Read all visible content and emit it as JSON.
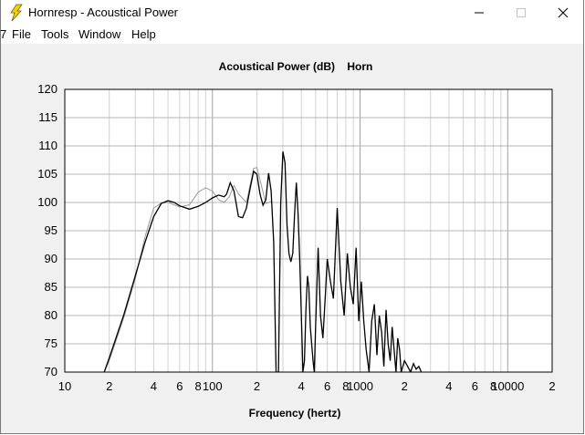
{
  "window": {
    "title": "Hornresp - Acoustical Power",
    "left_edge_glyph": "7"
  },
  "menu": [
    "File",
    "Tools",
    "Window",
    "Help"
  ],
  "chart_data": {
    "type": "line",
    "title": "Acoustical Power (dB)    Horn",
    "xlabel": "Frequency (hertz)",
    "ylabel": "",
    "x_scale": "log",
    "xlim": [
      10,
      20000
    ],
    "ylim": [
      70,
      120
    ],
    "y_ticks": [
      70,
      75,
      80,
      85,
      90,
      95,
      100,
      105,
      110,
      115,
      120
    ],
    "x_tick_labels": [
      {
        "x": 10,
        "label": "10"
      },
      {
        "x": 20,
        "label": "2"
      },
      {
        "x": 40,
        "label": "4"
      },
      {
        "x": 60,
        "label": "6"
      },
      {
        "x": 80,
        "label": "8"
      },
      {
        "x": 100,
        "label": "100"
      },
      {
        "x": 200,
        "label": "2"
      },
      {
        "x": 400,
        "label": "4"
      },
      {
        "x": 600,
        "label": "6"
      },
      {
        "x": 800,
        "label": "8"
      },
      {
        "x": 1000,
        "label": "1000"
      },
      {
        "x": 2000,
        "label": "2"
      },
      {
        "x": 4000,
        "label": "4"
      },
      {
        "x": 6000,
        "label": "6"
      },
      {
        "x": 8000,
        "label": "8"
      },
      {
        "x": 10000,
        "label": "10000"
      },
      {
        "x": 20000,
        "label": "2"
      }
    ],
    "grid": true,
    "series": [
      {
        "color": "#000000",
        "points": [
          [
            18.5,
            70
          ],
          [
            20,
            72.5
          ],
          [
            25,
            80
          ],
          [
            30,
            87
          ],
          [
            35,
            93
          ],
          [
            40,
            97.5
          ],
          [
            45,
            99.8
          ],
          [
            50,
            100.3
          ],
          [
            55,
            100
          ],
          [
            60,
            99.4
          ],
          [
            70,
            98.8
          ],
          [
            80,
            99.3
          ],
          [
            90,
            100
          ],
          [
            100,
            100.8
          ],
          [
            110,
            101.3
          ],
          [
            120,
            101
          ],
          [
            125,
            101.5
          ],
          [
            132,
            103.5
          ],
          [
            140,
            102
          ],
          [
            150,
            97.5
          ],
          [
            160,
            97.3
          ],
          [
            170,
            99
          ],
          [
            180,
            102.5
          ],
          [
            190,
            105.5
          ],
          [
            200,
            105
          ],
          [
            210,
            101.5
          ],
          [
            220,
            99.5
          ],
          [
            230,
            100.5
          ],
          [
            240,
            105.2
          ],
          [
            250,
            102
          ],
          [
            260,
            93
          ],
          [
            270,
            70
          ],
          [
            280,
            70
          ],
          [
            290,
            100
          ],
          [
            300,
            109
          ],
          [
            310,
            107
          ],
          [
            320,
            96
          ],
          [
            330,
            91
          ],
          [
            340,
            89.5
          ],
          [
            350,
            91
          ],
          [
            360,
            98
          ],
          [
            370,
            103.5
          ],
          [
            380,
            98
          ],
          [
            390,
            90
          ],
          [
            400,
            80
          ],
          [
            410,
            70
          ],
          [
            420,
            72
          ],
          [
            430,
            81
          ],
          [
            440,
            87
          ],
          [
            450,
            85
          ],
          [
            460,
            78
          ],
          [
            480,
            72
          ],
          [
            490,
            70
          ],
          [
            500,
            78
          ],
          [
            520,
            92
          ],
          [
            540,
            80
          ],
          [
            560,
            76
          ],
          [
            580,
            83
          ],
          [
            600,
            90
          ],
          [
            630,
            86
          ],
          [
            660,
            83
          ],
          [
            700,
            99
          ],
          [
            740,
            86
          ],
          [
            780,
            80
          ],
          [
            820,
            91
          ],
          [
            860,
            85
          ],
          [
            900,
            82
          ],
          [
            940,
            92
          ],
          [
            980,
            79
          ],
          [
            1020,
            86
          ],
          [
            1060,
            79
          ],
          [
            1100,
            74
          ],
          [
            1150,
            70
          ],
          [
            1200,
            79
          ],
          [
            1250,
            82
          ],
          [
            1300,
            73
          ],
          [
            1350,
            80
          ],
          [
            1400,
            77
          ],
          [
            1450,
            71
          ],
          [
            1500,
            81
          ],
          [
            1550,
            75
          ],
          [
            1600,
            72
          ],
          [
            1650,
            78
          ],
          [
            1700,
            74
          ],
          [
            1750,
            70
          ],
          [
            1800,
            76
          ],
          [
            1850,
            74
          ],
          [
            1900,
            70
          ],
          [
            2000,
            72
          ],
          [
            2100,
            71
          ],
          [
            2200,
            70
          ],
          [
            2300,
            71.5
          ],
          [
            2400,
            70.5
          ],
          [
            2500,
            71
          ],
          [
            2600,
            70
          ]
        ]
      },
      {
        "color": "#9a9a9a",
        "points": [
          [
            18.5,
            70
          ],
          [
            20,
            72
          ],
          [
            25,
            79.5
          ],
          [
            30,
            86.5
          ],
          [
            35,
            94
          ],
          [
            40,
            99
          ],
          [
            45,
            99.9
          ],
          [
            50,
            100
          ],
          [
            60,
            99.2
          ],
          [
            70,
            99.6
          ],
          [
            80,
            101.8
          ],
          [
            90,
            102.6
          ],
          [
            100,
            102
          ],
          [
            110,
            100.5
          ],
          [
            120,
            100
          ],
          [
            130,
            101
          ],
          [
            140,
            103
          ],
          [
            150,
            101.5
          ],
          [
            170,
            100
          ],
          [
            190,
            106
          ],
          [
            200,
            106.2
          ],
          [
            210,
            104
          ],
          [
            230,
            99.8
          ],
          [
            250,
            100.2
          ]
        ]
      }
    ]
  }
}
